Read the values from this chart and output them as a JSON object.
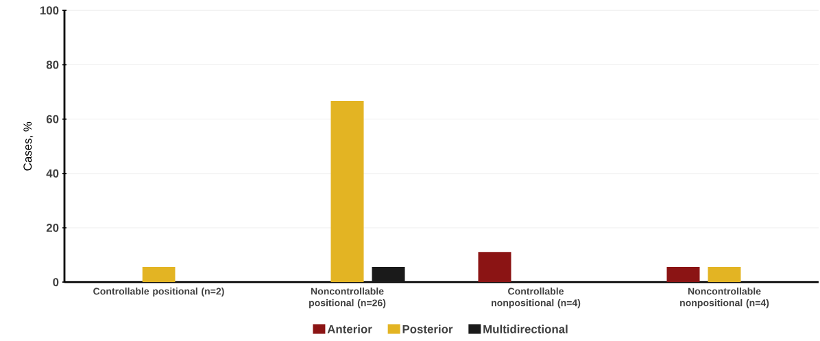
{
  "chart_data": {
    "type": "bar",
    "ylabel": "Cases, %",
    "categories": [
      "Controllable positional (n=2)",
      "Noncontrollable positional (n=26)",
      "Controllable nonpositional (n=4)",
      "Noncontrollable nonpositional (n=4)"
    ],
    "series": [
      {
        "name": "Anterior",
        "color": "#8b1414",
        "values": [
          0,
          0,
          11.1,
          5.6
        ]
      },
      {
        "name": "Posterior",
        "color": "#e3b423",
        "values": [
          5.6,
          66.7,
          0,
          5.6
        ]
      },
      {
        "name": "Multidirectional",
        "color": "#1a1a1a",
        "values": [
          0,
          5.6,
          0,
          0
        ]
      }
    ],
    "ylim": [
      0,
      100
    ],
    "yticks": [
      0,
      20,
      40,
      60,
      80,
      100
    ],
    "grid": "y",
    "legend": "bottom"
  }
}
